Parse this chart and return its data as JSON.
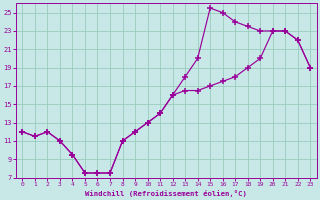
{
  "xlabel": "Windchill (Refroidissement éolien,°C)",
  "bg_color": "#c8e8e8",
  "grid_color": "#99ccbb",
  "line_color": "#990099",
  "marker": "+",
  "line1_x": [
    0,
    1,
    2,
    3,
    4,
    5,
    6,
    7,
    8,
    9,
    10,
    11,
    12,
    13,
    14,
    15,
    16,
    17,
    18,
    19,
    20,
    21,
    22,
    23
  ],
  "line1_y": [
    12,
    11.5,
    12,
    11,
    9.5,
    7.5,
    7.5,
    7.5,
    11,
    12,
    13,
    14,
    16,
    18,
    20,
    25.5,
    25,
    24,
    23.5,
    23,
    23,
    23,
    22,
    19
  ],
  "line2_x": [
    0,
    1,
    2,
    3,
    4,
    5,
    6,
    7,
    8,
    9,
    10,
    11,
    12,
    13,
    14,
    15,
    16,
    17,
    18,
    19,
    20,
    21,
    22,
    23
  ],
  "line2_y": [
    12,
    11.5,
    12,
    11,
    9.5,
    7.5,
    7.5,
    7.5,
    11,
    12,
    13,
    14,
    16,
    16.5,
    16.5,
    17,
    17.5,
    18,
    19,
    20,
    23,
    23,
    22,
    19
  ],
  "xlim": [
    -0.5,
    23.5
  ],
  "ylim": [
    7,
    26
  ],
  "xticks": [
    0,
    1,
    2,
    3,
    4,
    5,
    6,
    7,
    8,
    9,
    10,
    11,
    12,
    13,
    14,
    15,
    16,
    17,
    18,
    19,
    20,
    21,
    22,
    23
  ],
  "yticks": [
    7,
    9,
    11,
    13,
    15,
    17,
    19,
    21,
    23,
    25
  ]
}
